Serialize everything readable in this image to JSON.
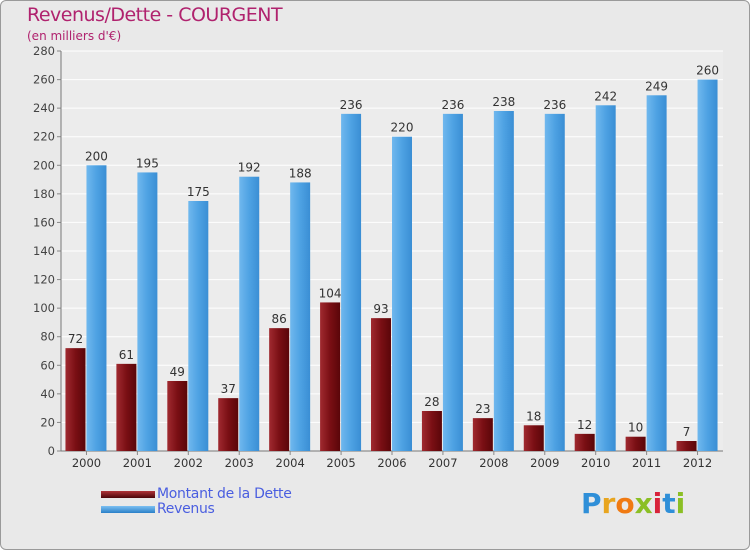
{
  "header": {
    "title": "Revenus/Dette - COURGENT",
    "subtitle": "(en milliers d'€)"
  },
  "colors": {
    "debt": "#7a0f14",
    "revenue": "#4ea2e3",
    "title": "#b0226e",
    "legend_text": "#4a5ee0"
  },
  "chart_data": {
    "type": "bar",
    "categories": [
      "2000",
      "2001",
      "2002",
      "2003",
      "2004",
      "2005",
      "2006",
      "2007",
      "2008",
      "2009",
      "2010",
      "2011",
      "2012"
    ],
    "series": [
      {
        "name": "Montant de la Dette",
        "values": [
          72,
          61,
          49,
          37,
          86,
          104,
          93,
          28,
          23,
          18,
          12,
          10,
          7
        ]
      },
      {
        "name": "Revenus",
        "values": [
          200,
          195,
          175,
          192,
          188,
          236,
          220,
          236,
          238,
          236,
          242,
          249,
          260
        ]
      }
    ],
    "yticks": [
      0,
      20,
      40,
      60,
      80,
      100,
      120,
      140,
      160,
      180,
      200,
      220,
      240,
      260,
      280
    ],
    "ylim": [
      0,
      280
    ],
    "grid": true,
    "legend_position": "bottom-left"
  },
  "logo": {
    "letters": [
      "P",
      "r",
      "o",
      "x",
      "i",
      "t",
      "i"
    ],
    "colors": [
      "#2f8fd8",
      "#e8a51f",
      "#f07a12",
      "#8bbf24",
      "#d8233a",
      "#2f8fd8",
      "#8bbf24"
    ]
  }
}
